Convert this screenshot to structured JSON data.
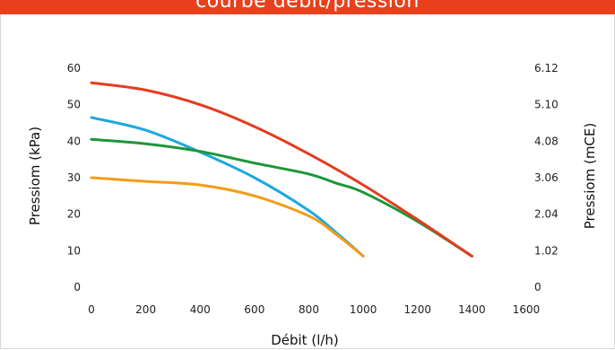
{
  "chart_data": {
    "type": "line",
    "title": "courbe débit/pression",
    "xlabel": "Débit (l/h)",
    "ylabel": "Pressiom (kPa)",
    "ylabel_right": "Pressiom (mCE)",
    "xlim": [
      0,
      1600
    ],
    "ylim": [
      0,
      60
    ],
    "x_ticks": [
      "0",
      "200",
      "400",
      "600",
      "800",
      "1000",
      "1200",
      "1400",
      "1600"
    ],
    "y_ticks": [
      "0",
      "10",
      "20",
      "30",
      "40",
      "50",
      "60"
    ],
    "y_right_ticks": [
      "0",
      "1.02",
      "2.04",
      "3.06",
      "4.08",
      "5.10",
      "6.12"
    ],
    "grid": false,
    "series": [
      {
        "color": "#e63b1f",
        "x": [
          0,
          200,
          400,
          600,
          800,
          1000,
          1200,
          1400
        ],
        "y": [
          56,
          54,
          50,
          44,
          36.5,
          28,
          18.5,
          8.5
        ]
      },
      {
        "color": "#1ea7e1",
        "x": [
          0,
          200,
          400,
          600,
          800,
          900,
          1000
        ],
        "y": [
          46.5,
          43,
          37,
          30,
          21,
          15,
          8.5
        ]
      },
      {
        "color": "#1d9639",
        "x": [
          0,
          200,
          400,
          600,
          800,
          900,
          1000,
          1200,
          1400
        ],
        "y": [
          40.5,
          39.3,
          37.2,
          34,
          31,
          28.5,
          26,
          18,
          8.5
        ]
      },
      {
        "color": "#f39c19",
        "x": [
          0,
          200,
          400,
          600,
          800,
          900,
          1000
        ],
        "y": [
          30,
          29,
          28,
          25,
          19.5,
          14.5,
          8.5
        ]
      }
    ]
  }
}
